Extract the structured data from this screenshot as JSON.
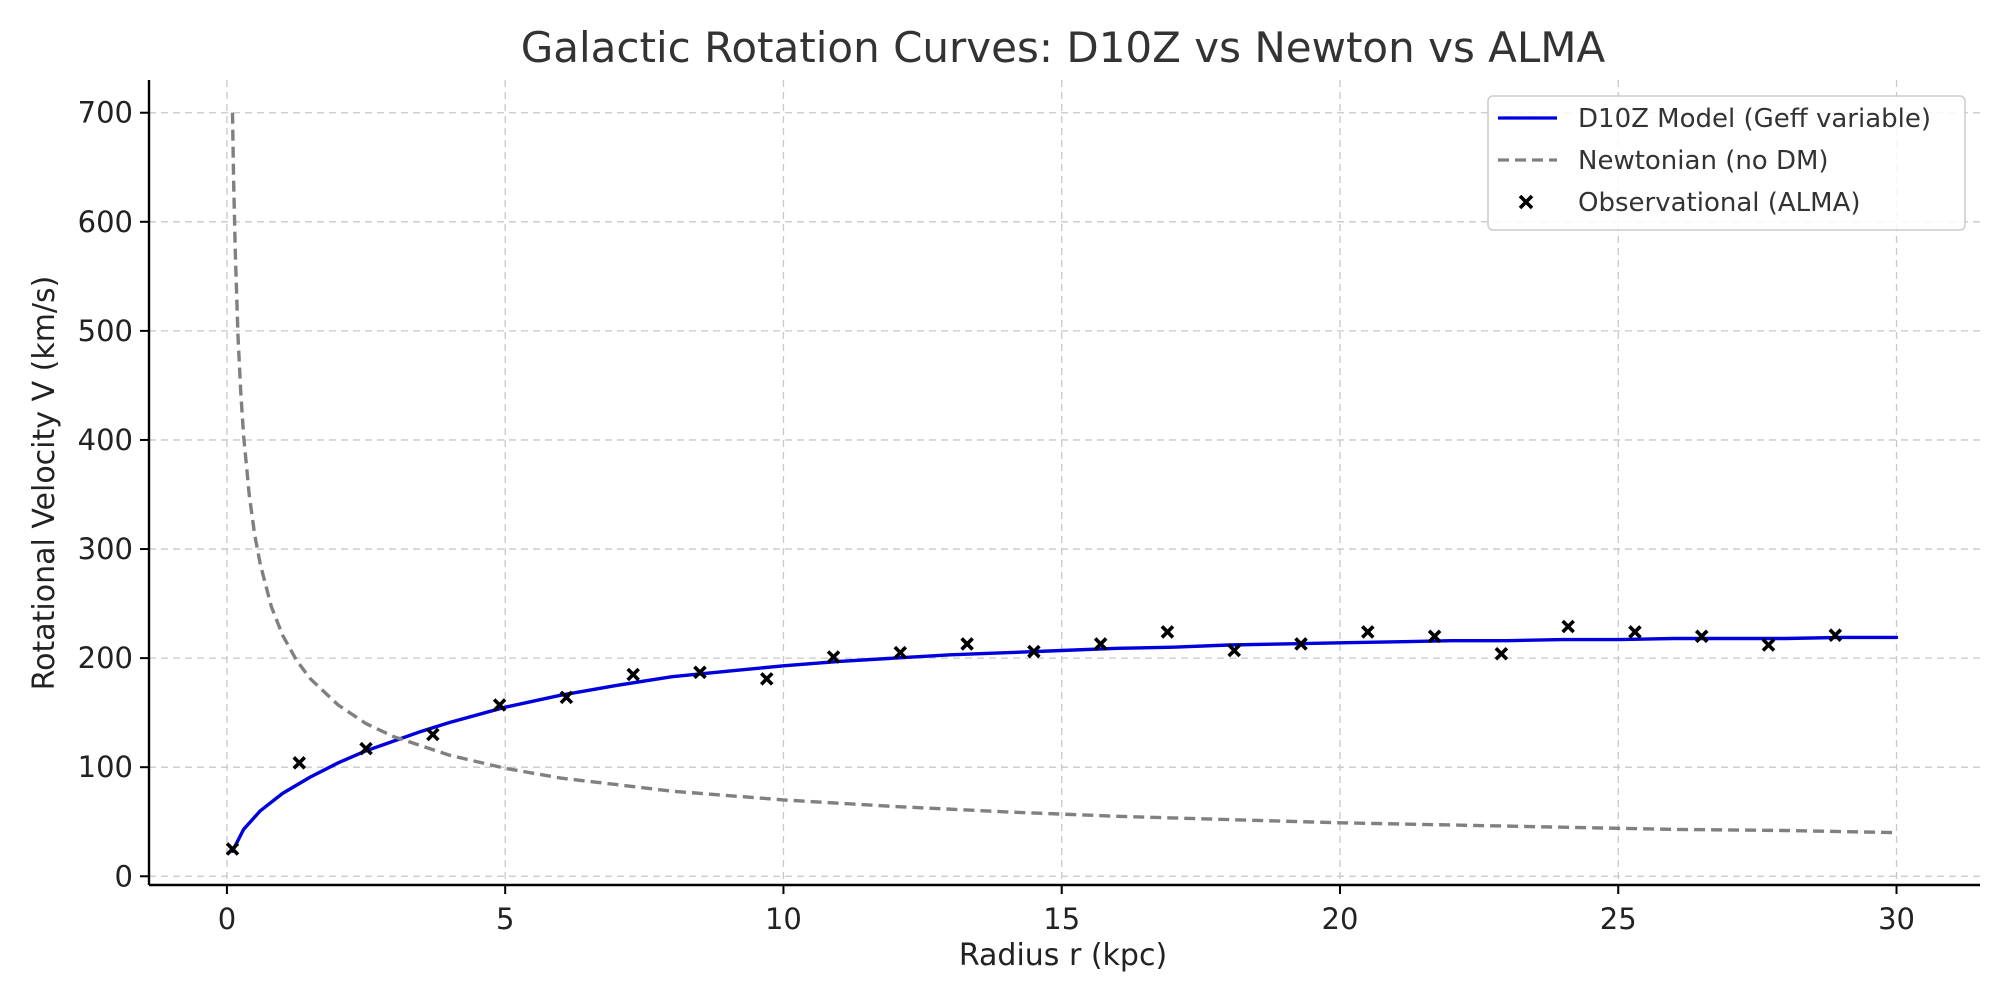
{
  "chart_data": {
    "type": "line",
    "title": "Galactic Rotation Curves: D10Z vs Newton vs ALMA",
    "xlabel": "Radius r (kpc)",
    "ylabel": "Rotational Velocity V (km/s)",
    "xlim": [
      -1.4,
      31.5
    ],
    "ylim": [
      -8,
      730
    ],
    "xticks": [
      0,
      5,
      10,
      15,
      20,
      25,
      30
    ],
    "yticks": [
      0,
      100,
      200,
      300,
      400,
      500,
      600,
      700
    ],
    "grid": true,
    "legend_position": "top-right",
    "series": [
      {
        "name": "D10Z Model (Geff variable)",
        "kind": "line",
        "style": "solid",
        "color": "#0000dd",
        "x": [
          0.1,
          0.3,
          0.6,
          1.0,
          1.5,
          2.0,
          2.5,
          3.0,
          3.5,
          4.0,
          5.0,
          6.0,
          7.0,
          8.0,
          9.0,
          10.0,
          11.0,
          12.0,
          13.0,
          14.0,
          15.0,
          16.0,
          17.0,
          18.0,
          19.0,
          20.0,
          21.0,
          22.0,
          23.0,
          24.0,
          25.0,
          26.0,
          27.0,
          28.0,
          29.0,
          30.0
        ],
        "y": [
          23,
          43,
          60,
          76,
          91,
          104,
          115,
          124,
          133,
          141,
          155,
          166,
          175,
          183,
          188,
          193,
          197,
          200,
          203,
          205,
          207,
          209,
          210,
          212,
          213,
          214,
          215,
          216,
          216,
          217,
          217,
          218,
          218,
          218,
          219,
          219
        ]
      },
      {
        "name": "Newtonian (no DM)",
        "kind": "line",
        "style": "dashed",
        "color": "#808080",
        "x": [
          0.1,
          0.12,
          0.15,
          0.2,
          0.25,
          0.3,
          0.4,
          0.5,
          0.6,
          0.8,
          1.0,
          1.25,
          1.5,
          2.0,
          2.5,
          3.0,
          4.0,
          5.0,
          6.0,
          7.0,
          8.0,
          10.0,
          12.0,
          14.0,
          16.0,
          18.0,
          20.0,
          22.0,
          24.0,
          26.0,
          28.0,
          30.0
        ],
        "y": [
          700,
          639,
          572,
          495,
          443,
          404,
          350,
          313,
          286,
          247,
          221,
          198,
          181,
          157,
          140,
          128,
          111,
          99,
          90,
          84,
          78,
          70,
          64,
          59,
          55,
          52,
          49,
          47,
          45,
          43,
          42,
          40
        ]
      },
      {
        "name": "Observational (ALMA)",
        "kind": "scatter",
        "marker": "x",
        "color": "#000000",
        "x": [
          0.1,
          1.3,
          2.5,
          3.7,
          4.9,
          6.1,
          7.3,
          8.5,
          9.7,
          10.9,
          12.1,
          13.3,
          14.5,
          15.7,
          16.9,
          18.1,
          19.3,
          20.5,
          21.7,
          22.9,
          24.1,
          25.3,
          26.5,
          27.7,
          28.9
        ],
        "y": [
          25,
          104,
          117,
          130,
          157,
          164,
          185,
          187,
          181,
          201,
          205,
          213,
          206,
          213,
          224,
          207,
          213,
          224,
          220,
          204,
          229,
          224,
          220,
          212,
          221
        ]
      }
    ]
  }
}
